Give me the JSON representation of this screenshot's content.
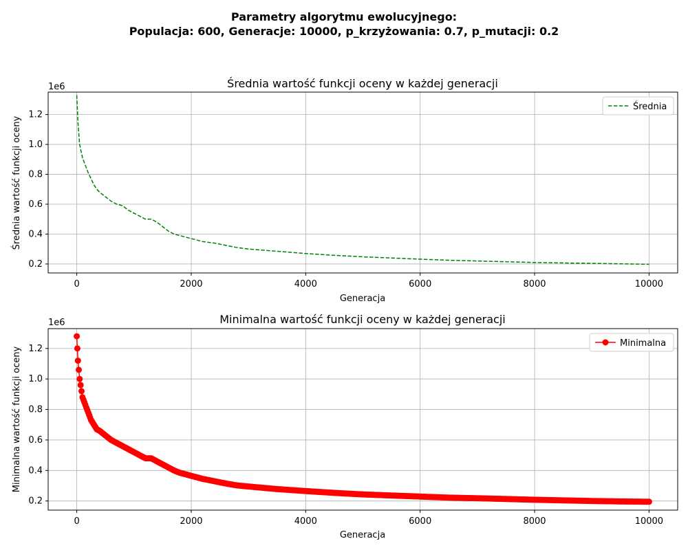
{
  "figure": {
    "suptitle_line1": "Parametry algorytmu ewolucyjnego:",
    "suptitle_line2": "Populacja: 600, Generacje: 10000, p_krzyżowania: 0.7, p_mutacji: 0.2"
  },
  "chart_data": [
    {
      "type": "line",
      "title": "Średnia wartość funkcji oceny w każdej generacji",
      "xlabel": "Generacja",
      "ylabel": "Średnia wartość funkcji oceny",
      "y_offset_label": "1e6",
      "xlim": [
        -500,
        10500
      ],
      "ylim": [
        0.14,
        1.35
      ],
      "xticks": [
        0,
        2000,
        4000,
        6000,
        8000,
        10000
      ],
      "xtick_labels": [
        "0",
        "2000",
        "4000",
        "6000",
        "8000",
        "10000"
      ],
      "yticks": [
        0.2,
        0.4,
        0.6,
        0.8,
        1.0,
        1.2
      ],
      "ytick_labels": [
        "0.2",
        "0.4",
        "0.6",
        "0.8",
        "1.0",
        "1.2"
      ],
      "grid": true,
      "legend": "top-right",
      "series": [
        {
          "name": "Średnia",
          "color": "#008000",
          "linestyle": "dashed",
          "marker": "none",
          "x": [
            0,
            20,
            50,
            100,
            150,
            200,
            250,
            300,
            350,
            400,
            500,
            600,
            700,
            800,
            900,
            1000,
            1100,
            1200,
            1300,
            1400,
            1500,
            1600,
            1700,
            1800,
            1900,
            2000,
            2200,
            2400,
            2600,
            2800,
            3000,
            3500,
            4000,
            4500,
            5000,
            5500,
            6000,
            6500,
            7000,
            7500,
            8000,
            8500,
            9000,
            9500,
            10000
          ],
          "y": [
            1.33,
            1.15,
            1.0,
            0.91,
            0.86,
            0.81,
            0.77,
            0.73,
            0.7,
            0.68,
            0.65,
            0.62,
            0.6,
            0.59,
            0.56,
            0.54,
            0.52,
            0.5,
            0.5,
            0.48,
            0.45,
            0.42,
            0.4,
            0.39,
            0.38,
            0.37,
            0.35,
            0.34,
            0.325,
            0.31,
            0.3,
            0.285,
            0.27,
            0.258,
            0.248,
            0.24,
            0.232,
            0.225,
            0.22,
            0.215,
            0.21,
            0.207,
            0.204,
            0.201,
            0.198
          ]
        }
      ]
    },
    {
      "type": "line",
      "title": "Minimalna wartość funkcji oceny w każdej generacji",
      "xlabel": "Generacja",
      "ylabel": "Minimalna wartość funkcji oceny",
      "y_offset_label": "1e6",
      "xlim": [
        -500,
        10500
      ],
      "ylim": [
        0.14,
        1.33
      ],
      "xticks": [
        0,
        2000,
        4000,
        6000,
        8000,
        10000
      ],
      "xtick_labels": [
        "0",
        "2000",
        "4000",
        "6000",
        "8000",
        "10000"
      ],
      "yticks": [
        0.2,
        0.4,
        0.6,
        0.8,
        1.0,
        1.2
      ],
      "ytick_labels": [
        "0.2",
        "0.4",
        "0.6",
        "0.8",
        "1.0",
        "1.2"
      ],
      "grid": true,
      "legend": "top-right",
      "series": [
        {
          "name": "Minimalna",
          "color": "#ff0000",
          "linestyle": "solid",
          "marker": "circle",
          "x": [
            0,
            20,
            50,
            100,
            150,
            200,
            250,
            300,
            350,
            400,
            500,
            600,
            700,
            800,
            900,
            1000,
            1100,
            1200,
            1300,
            1400,
            1500,
            1600,
            1700,
            1800,
            1900,
            2000,
            2200,
            2400,
            2600,
            2800,
            3000,
            3500,
            4000,
            4500,
            5000,
            5500,
            6000,
            6500,
            7000,
            7500,
            8000,
            8500,
            9000,
            9500,
            10000
          ],
          "y": [
            1.28,
            1.12,
            1.0,
            0.88,
            0.83,
            0.78,
            0.73,
            0.7,
            0.67,
            0.66,
            0.63,
            0.6,
            0.58,
            0.56,
            0.54,
            0.52,
            0.5,
            0.48,
            0.48,
            0.46,
            0.44,
            0.42,
            0.4,
            0.385,
            0.375,
            0.365,
            0.345,
            0.33,
            0.315,
            0.302,
            0.295,
            0.278,
            0.265,
            0.253,
            0.243,
            0.236,
            0.229,
            0.222,
            0.218,
            0.213,
            0.208,
            0.204,
            0.2,
            0.197,
            0.195
          ]
        }
      ]
    }
  ]
}
